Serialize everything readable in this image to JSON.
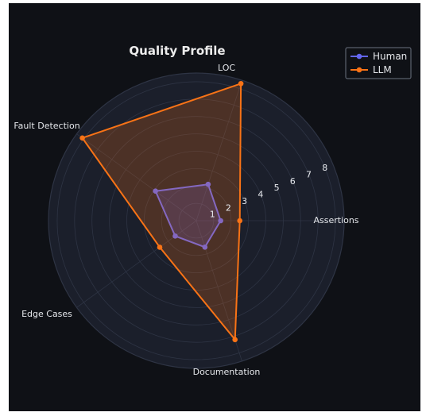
{
  "colors": {
    "figure_bg": "#0f1116",
    "polar_bg": "#1b1f2b",
    "grid": "#2e3444",
    "human": "#6366f1",
    "llm": "#f97316"
  },
  "chart_data": {
    "type": "radar",
    "title": "Quality Profile",
    "categories": [
      "Assertions",
      "LOC",
      "Fault Detection",
      "Edge Cases",
      "Documentation"
    ],
    "rlim": [
      0,
      8.5
    ],
    "rticks": [
      1,
      2,
      3,
      4,
      5,
      6,
      7,
      8
    ],
    "grid": true,
    "legend_position": "top-right",
    "series": [
      {
        "name": "Human",
        "color": "#6366f1",
        "values": [
          1.4,
          2.2,
          2.9,
          1.5,
          1.6
        ]
      },
      {
        "name": "LLM",
        "color": "#f97316",
        "values": [
          2.5,
          8.3,
          8.1,
          2.6,
          7.2
        ]
      }
    ]
  }
}
